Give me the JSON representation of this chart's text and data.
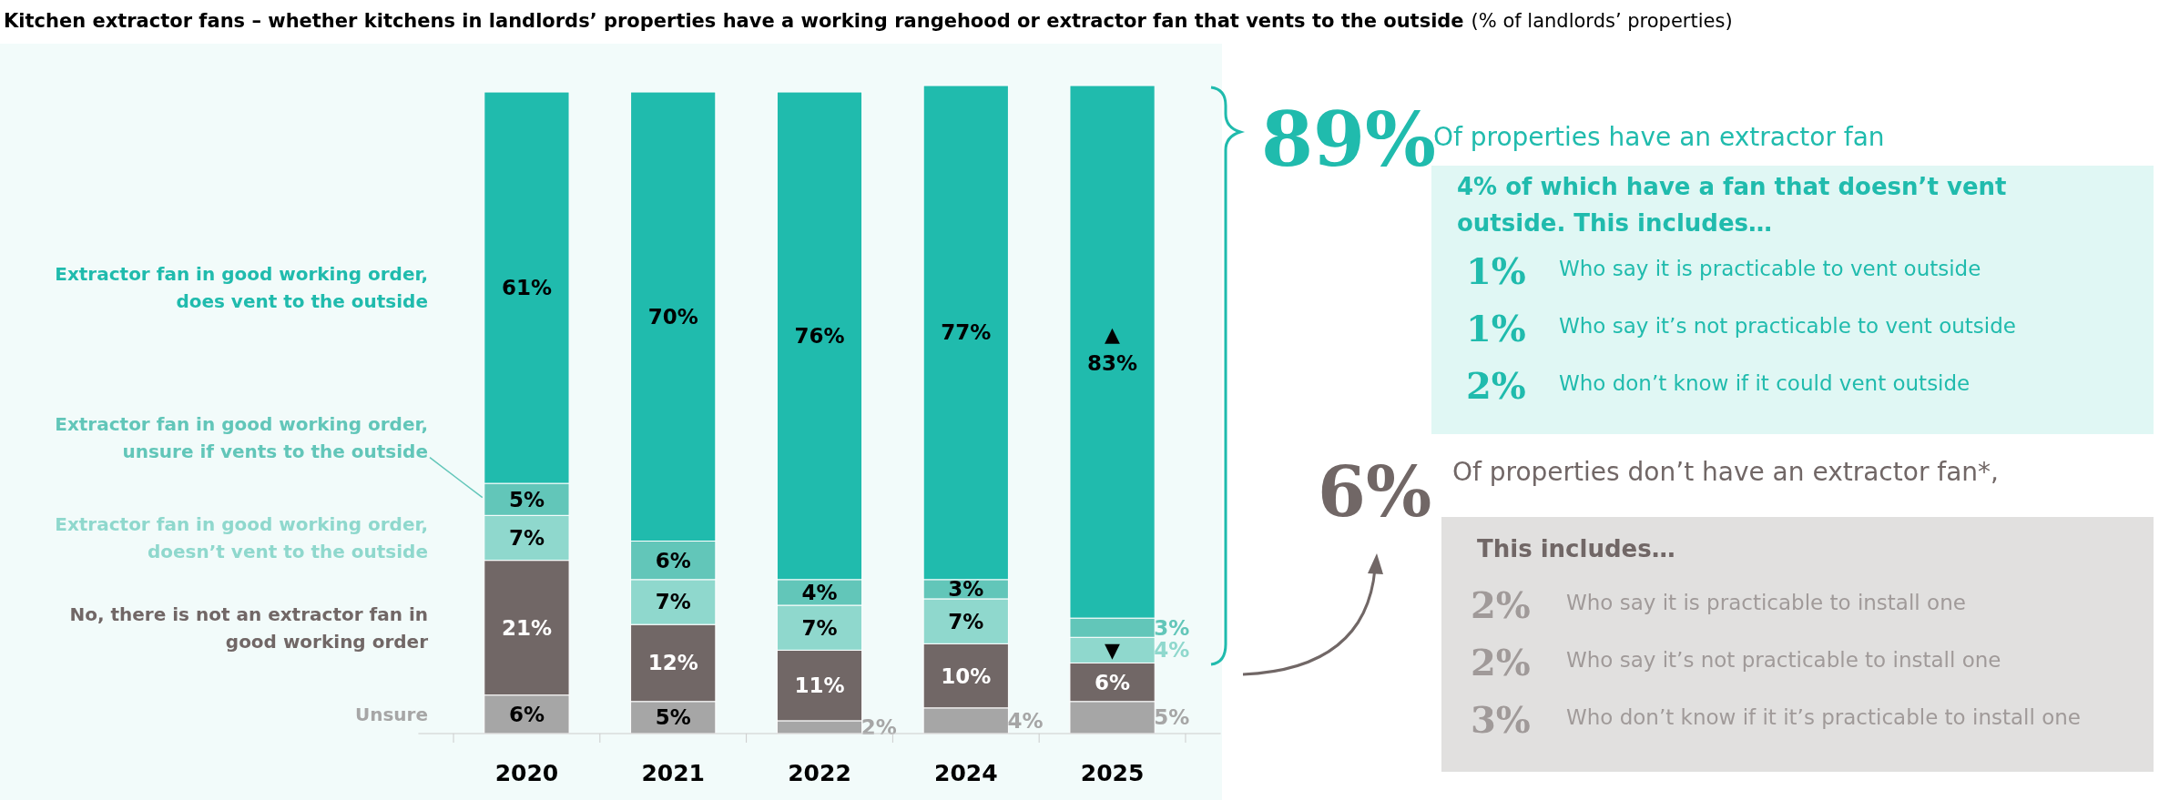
{
  "chart_data": {
    "type": "bar",
    "title": "Kitchen extractor fans – whether kitchens in landlords’ properties have a working rangehood or extractor fan that vents to the outside",
    "subtitle": "(% of landlords’ properties)",
    "categories": [
      "2020",
      "2021",
      "2022",
      "2024",
      "2025"
    ],
    "stacked": true,
    "series": [
      {
        "name": "Unsure",
        "color": "#a6a6a6",
        "values": [
          6,
          5,
          2,
          4,
          5
        ],
        "value_labels": [
          "6%",
          "5%",
          "2%",
          "4%",
          "5%"
        ]
      },
      {
        "name": "No, there is not an extractor fan in good working order",
        "color": "#716766",
        "values": [
          21,
          12,
          11,
          10,
          6
        ],
        "value_labels": [
          "21%",
          "12%",
          "11%",
          "10%",
          "6%"
        ]
      },
      {
        "name": "Extractor fan in good working order, doesn’t vent to the outside",
        "color": "#8fd8cd",
        "values": [
          7,
          7,
          7,
          7,
          4
        ],
        "value_labels": [
          "7%",
          "7%",
          "7%",
          "7%",
          "4%"
        ]
      },
      {
        "name": "Extractor fan in good working order, unsure if vents to the outside",
        "color": "#62c6b9",
        "values": [
          5,
          6,
          4,
          3,
          3
        ],
        "value_labels": [
          "5%",
          "6%",
          "4%",
          "3%",
          "3%"
        ]
      },
      {
        "name": "Extractor fan in good working order, does vent to the outside",
        "color": "#20bbad",
        "values": [
          61,
          70,
          76,
          77,
          83
        ],
        "value_labels": [
          "61%",
          "70%",
          "76%",
          "77%",
          "83%"
        ]
      }
    ],
    "annotations": [
      "▲",
      "▼",
      "89%",
      "Of properties have an extractor fan",
      "4% of which have a fan that doesn’t vent outside. This includes…",
      "1%",
      "Who say it is practicable to vent outside",
      "1%",
      "Who say it’s not practicable to vent outside",
      "2%",
      "Who don’t know if it could vent outside",
      "6%",
      "Of properties don’t have an extractor fan*,",
      "This includes…",
      "2%",
      "Who say it is practicable to install one",
      "2%",
      "Who say it’s not practicable to install one",
      "3%",
      "Who don’t know if it it’s practicable to install one"
    ]
  }
}
